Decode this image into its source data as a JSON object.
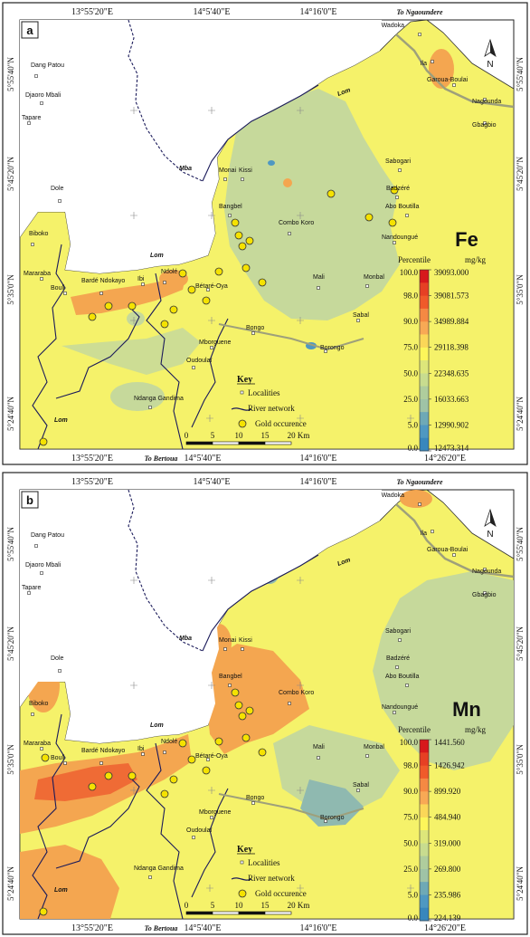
{
  "panels": [
    {
      "id": "a",
      "panel_label": "a",
      "element": "Fe",
      "legend": {
        "header_left": "Percentile",
        "header_right": "mg/kg",
        "percentiles": [
          "100.0",
          "98.0",
          "90.0",
          "75.0",
          "50.0",
          "25.0",
          "5.0",
          "0.0"
        ],
        "values": [
          "39093.000",
          "39081.573",
          "34989.884",
          "29118.398",
          "22348.635",
          "16033.663",
          "12990.902",
          "12473.314"
        ]
      },
      "lom_labels": [
        "Lom",
        "Lom",
        "Lom"
      ],
      "mba_label": "Mba"
    },
    {
      "id": "b",
      "panel_label": "b",
      "element": "Mn",
      "legend": {
        "header_left": "Percentile",
        "header_right": "mg/kg",
        "percentiles": [
          "100.0",
          "98.0",
          "90.0",
          "75.0",
          "50.0",
          "25.0",
          "5.0",
          "0.0"
        ],
        "values": [
          "1441.560",
          "1426.942",
          "899.920",
          "484.940",
          "319.000",
          "269.800",
          "235.986",
          "224.139"
        ]
      },
      "lom_labels": [
        "Lom",
        "Lom",
        "Lom"
      ],
      "mba_label": "Mba"
    }
  ],
  "legend_colors": [
    "#d7191c",
    "#f05a2a",
    "#f8a955",
    "#fdf65a",
    "#c8dc8f",
    "#9fc3a6",
    "#4f98c2",
    "#2b7bb9"
  ],
  "map_colors": {
    "background": "#ffffff",
    "yellow": "#f5f26a",
    "green": "#c6d99b",
    "blue_green": "#8fb9b0",
    "orange": "#f4a650",
    "red_orange": "#ef6b35",
    "river": "#1a1a5a",
    "road": "#9ea07b"
  },
  "top_coords": [
    "13°55'20\"E",
    "14°5'40\"E",
    "14°16'0\"E"
  ],
  "bottom_coords": [
    "13°55'20\"E",
    "14°5'40\"E",
    "14°16'0\"E",
    "14°26'20\"E"
  ],
  "left_coords": [
    "5°55'40\"N",
    "5°45'20\"N",
    "5°35'0\"N",
    "5°24'40\"N"
  ],
  "right_coords": [
    "5°55'40\"N",
    "5°45'20\"N",
    "5°35'0\"N",
    "5°24'40\"N"
  ],
  "to_ngaoundere": "To Ngaoundere",
  "to_bertoua": "To Bertoua",
  "north_label": "N",
  "key": {
    "title": "Key",
    "localities": "Localities",
    "river_network": "River network",
    "gold_occurrence": "Gold occurence"
  },
  "scale_bar": {
    "ticks": [
      "0",
      "5",
      "10",
      "15",
      "20 Km"
    ]
  },
  "localities": [
    "Wadoka",
    "Ila",
    "Garoua-Boulai",
    "Nagounda",
    "Gbagbio",
    "Dang Patou",
    "Djaoro Mbali",
    "Tapare",
    "Monai",
    "Kissi",
    "Sabogari",
    "Badzéré",
    "Abo Boutilla",
    "Dole",
    "Bangbel",
    "Combo Koro",
    "Nandoungué",
    "Biboko",
    "Mararaba",
    "Bouli",
    "Bardé Ndokayo",
    "Ibi",
    "Ndolé",
    "Bétaré-Oya",
    "Mali",
    "Monbal",
    "Sabal",
    "Bongo",
    "Mborguene",
    "Borongo",
    "Oudoulaï",
    "Ndanga Gandima"
  ]
}
